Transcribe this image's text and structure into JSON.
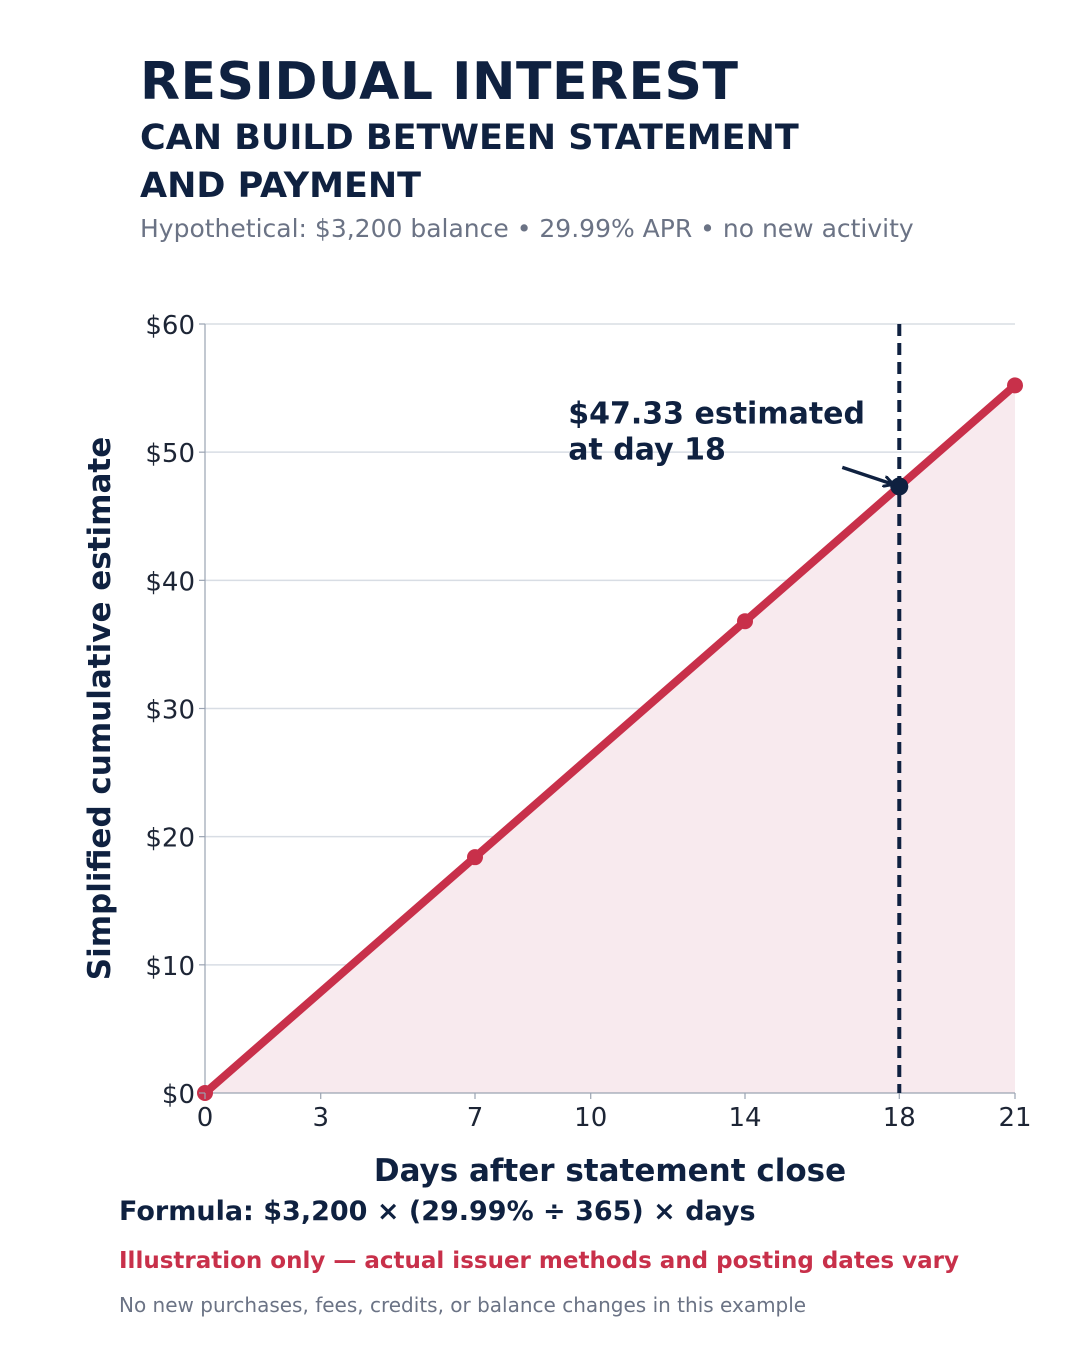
{
  "header": {
    "title": "RESIDUAL INTEREST",
    "subtitle_line1": "CAN BUILD BETWEEN STATEMENT",
    "subtitle_line2": "AND PAYMENT",
    "note": "Hypothetical: $3,200 balance • 29.99% APR • no new activity"
  },
  "chart_data": {
    "type": "area",
    "xlabel": "Days after statement close",
    "ylabel": "Simplified cumulative estimate",
    "xlim": [
      0,
      21
    ],
    "ylim": [
      0,
      60
    ],
    "x_ticks": [
      0,
      3,
      7,
      10,
      14,
      18,
      21
    ],
    "x_tick_labels": [
      "0",
      "3",
      "7",
      "10",
      "14",
      "18",
      "21"
    ],
    "y_ticks": [
      0,
      10,
      20,
      30,
      40,
      50,
      60
    ],
    "y_tick_labels": [
      "$0",
      "$10",
      "$20",
      "$30",
      "$40",
      "$50",
      "$60"
    ],
    "grid": "horizontal",
    "series": [
      {
        "x": [
          0,
          21
        ],
        "y": [
          0,
          55.21
        ],
        "color": "#c8304a",
        "fill": "#f8eaee"
      }
    ],
    "markers": [
      {
        "x": 0,
        "y": 0
      },
      {
        "x": 7,
        "y": 18.4
      },
      {
        "x": 14,
        "y": 36.81
      },
      {
        "x": 21,
        "y": 55.21
      }
    ],
    "highlight": {
      "x": 18,
      "y": 47.33,
      "color": "#0f2140",
      "line1": "$47.33 estimated",
      "line2": "at day 18"
    }
  },
  "footer": {
    "formula": "Formula: $3,200 × (29.99% ÷ 365) × days",
    "disclaimer": "Illustration only — actual issuer methods and posting dates vary",
    "fine_print": "No new purchases, fees, credits, or balance changes in this example"
  },
  "colors": {
    "accent": "#c8304a",
    "navy": "#0f2140",
    "muted": "#6b7385",
    "fill": "#f8eaee"
  }
}
